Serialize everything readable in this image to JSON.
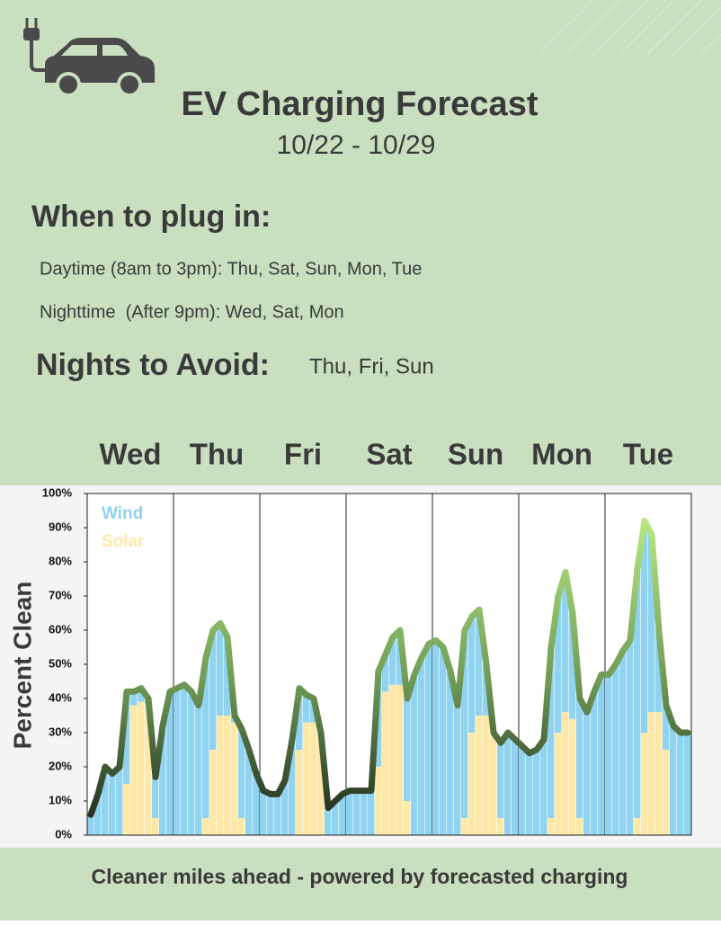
{
  "header": {
    "title": "EV Charging Forecast",
    "dates": "10/22 - 10/29"
  },
  "plug_in": {
    "heading": "When to plug in:",
    "items": [
      "Daytime (8am to 3pm): Thu, Sat, Sun, Mon, Tue",
      "Nighttime  (After 9pm): Wed, Sat, Mon"
    ]
  },
  "avoid": {
    "heading": "Nights to Avoid:",
    "days": "Thu, Fri, Sun"
  },
  "chart_data": {
    "type": "stacked-bar",
    "days": [
      "Wed",
      "Thu",
      "Fri",
      "Sat",
      "Sun",
      "Mon",
      "Tue"
    ],
    "y_label": "Percent Clean",
    "ylim": [
      0,
      100
    ],
    "yticks": [
      {
        "value": 0,
        "label": "0%"
      },
      {
        "value": 10,
        "label": "10%"
      },
      {
        "value": 20,
        "label": "20%"
      },
      {
        "value": 30,
        "label": "30%"
      },
      {
        "value": 40,
        "label": "40%"
      },
      {
        "value": 50,
        "label": "50%"
      },
      {
        "value": 60,
        "label": "60%"
      },
      {
        "value": 70,
        "label": "70%"
      },
      {
        "value": 80,
        "label": "80%"
      },
      {
        "value": 90,
        "label": "90%"
      },
      {
        "value": 100,
        "label": "100%"
      }
    ],
    "series": [
      {
        "name": "Solar",
        "color": "#fde8a8",
        "values": [
          0,
          0,
          0,
          0,
          0,
          15,
          38,
          39,
          38,
          5,
          0,
          0,
          0,
          0,
          0,
          0,
          5,
          25,
          35,
          35,
          33,
          5,
          0,
          0,
          0,
          0,
          0,
          0,
          0,
          25,
          33,
          33,
          30,
          0,
          0,
          0,
          0,
          0,
          0,
          0,
          20,
          42,
          44,
          44,
          10,
          0,
          0,
          0,
          0,
          0,
          0,
          0,
          5,
          30,
          35,
          35,
          30,
          5,
          0,
          0,
          0,
          0,
          0,
          0,
          5,
          30,
          36,
          34,
          5,
          0,
          0,
          0,
          0,
          0,
          0,
          0,
          5,
          30,
          36,
          36,
          25,
          0,
          0,
          0
        ]
      },
      {
        "name": "Wind",
        "color": "#8fd3f0",
        "values": [
          6,
          12,
          20,
          18,
          20,
          27,
          4,
          4,
          2,
          12,
          32,
          42,
          43,
          44,
          42,
          38,
          47,
          35,
          27,
          23,
          2,
          26,
          25,
          18,
          13,
          12,
          12,
          16,
          28,
          18,
          8,
          7,
          0,
          8,
          10,
          12,
          13,
          13,
          13,
          13,
          28,
          11,
          14,
          16,
          30,
          47,
          52,
          56,
          57,
          55,
          48,
          38,
          55,
          34,
          31,
          15,
          0,
          22,
          30,
          28,
          26,
          24,
          25,
          28,
          50,
          40,
          41,
          31,
          35,
          36,
          42,
          47,
          47,
          50,
          54,
          57,
          73,
          62,
          52,
          24,
          13,
          32,
          30,
          30
        ]
      }
    ]
  },
  "footer": "Cleaner miles ahead - powered by forecasted charging"
}
